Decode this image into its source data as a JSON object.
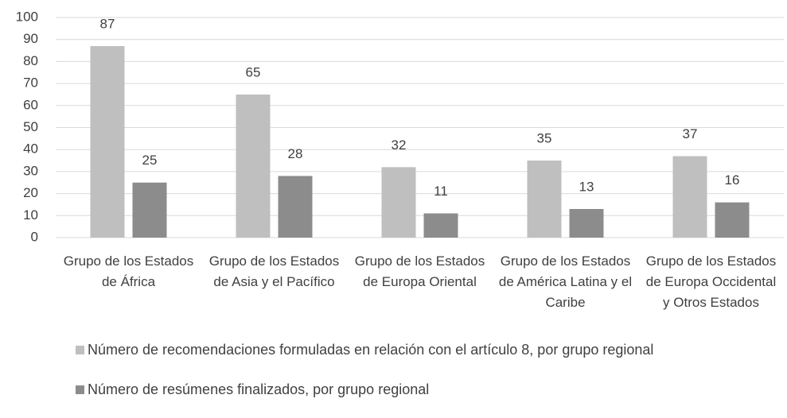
{
  "chart_data": {
    "type": "bar",
    "categories": [
      "Grupo de los Estados de África",
      "Grupo de los Estados de Asia y el Pacífico",
      "Grupo de los Estados de Europa Oriental",
      "Grupo de los Estados de América Latina y el Caribe",
      "Grupo de los Estados de Europa Occidental y Otros Estados"
    ],
    "series": [
      {
        "name": "Número de recomendaciones formuladas en relación con el artículo 8, por grupo regional",
        "color": "#bfbfbf",
        "values": [
          87,
          65,
          32,
          35,
          37
        ]
      },
      {
        "name": "Número de resúmenes finalizados, por grupo regional",
        "color": "#8c8c8c",
        "values": [
          25,
          28,
          11,
          13,
          16
        ]
      }
    ],
    "ylim": [
      0,
      100
    ],
    "yticks": [
      0,
      10,
      20,
      30,
      40,
      50,
      60,
      70,
      80,
      90,
      100
    ],
    "grid": true,
    "legend": "bottom"
  }
}
